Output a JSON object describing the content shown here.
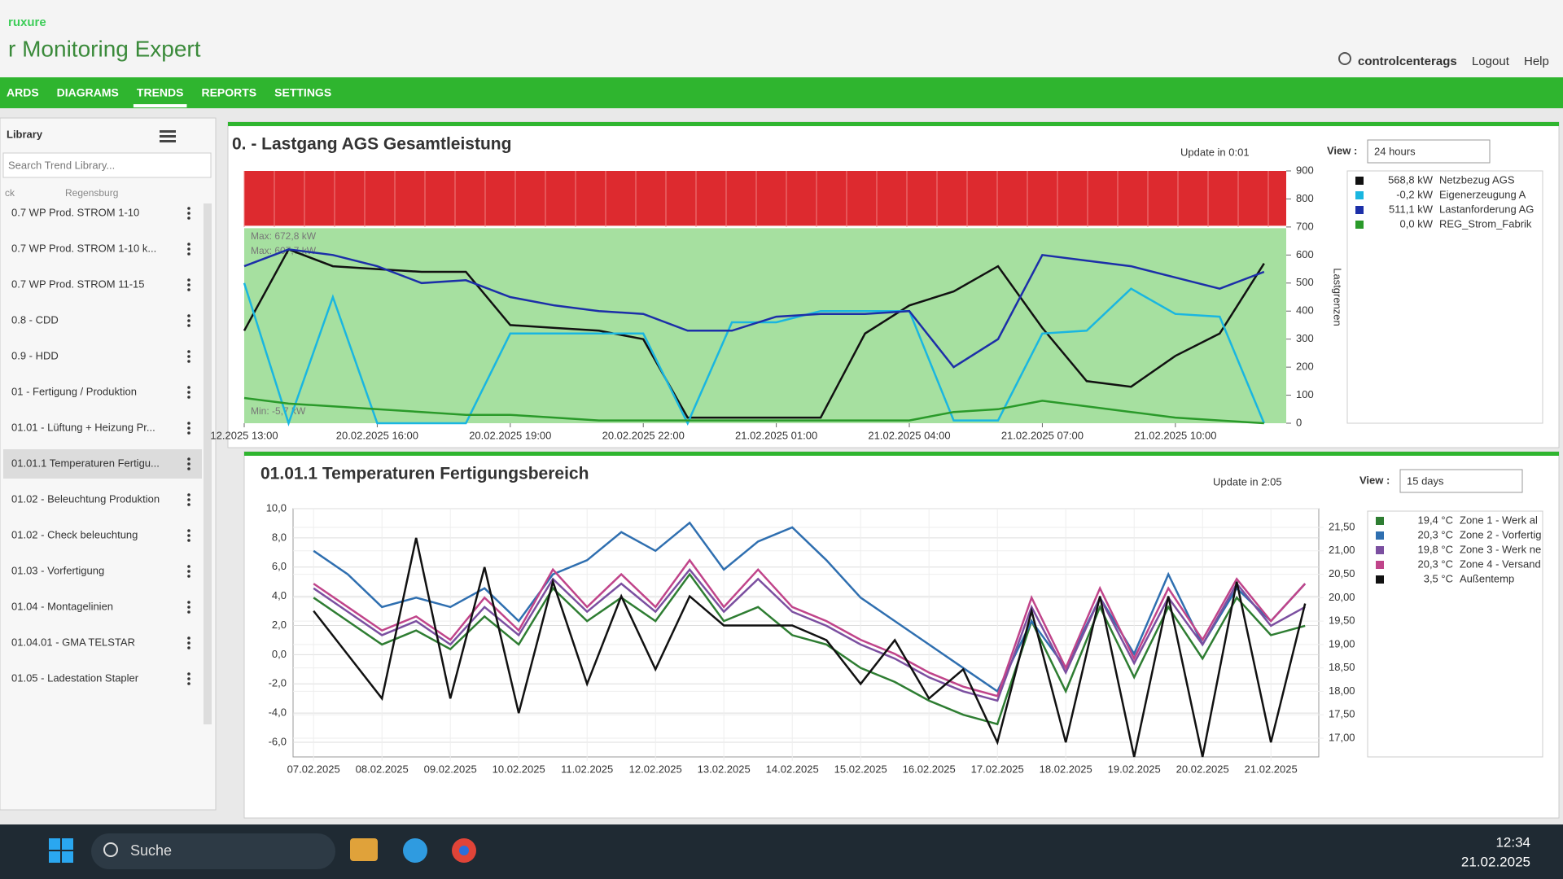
{
  "header": {
    "brand": "ruxure",
    "app": "r Monitoring Expert",
    "user": "controlcenterags",
    "logout": "Logout",
    "help": "Help"
  },
  "nav": [
    "ARDS",
    "DIAGRAMS",
    "TRENDS",
    "REPORTS",
    "SETTINGS"
  ],
  "library": {
    "title": "Library",
    "search": "Search Trend Library...",
    "columns": [
      "ck",
      "Regensburg"
    ],
    "items": [
      "0.7 WP Prod. STROM 1-10",
      "0.7 WP Prod. STROM 1-10 k...",
      "0.7 WP Prod. STROM 11-15",
      "0.8 - CDD",
      "0.9 - HDD",
      "01 - Fertigung / Produktion",
      "01.01 - Lüftung + Heizung Pr...",
      "01.01.1 Temperaturen Fertigu...",
      "01.02 - Beleuchtung Produktion",
      "01.02 - Check beleuchtung",
      "01.03 - Vorfertigung",
      "01.04 - Montagelinien",
      "01.04.01 - GMA TELSTAR",
      "01.05 - Ladestation Stapler"
    ]
  },
  "chart_data": [
    {
      "type": "line",
      "title": "0. - Lastgang AGS Gesamtleistung",
      "update": "Update in 0:01",
      "view_label": "View :",
      "view_value": "24 hours",
      "y2_label": "Lastgrenzen",
      "annotations": [
        "Max: 672,8 kW",
        "Max: 607,7 kW",
        "Min: -5,7 kW"
      ],
      "limit": 700,
      "x": [
        0,
        1,
        2,
        3,
        4,
        5,
        6,
        7,
        8,
        9,
        10,
        11,
        12,
        13,
        14,
        15,
        16,
        17,
        18,
        19,
        20,
        21,
        22,
        23
      ],
      "xlim": [
        0,
        23.5
      ],
      "xticks": [
        {
          "value": 0,
          "label": "12.2025 13:00"
        },
        {
          "value": 3,
          "label": "20.02.2025 16:00"
        },
        {
          "value": 6,
          "label": "20.02.2025 19:00"
        },
        {
          "value": 9,
          "label": "20.02.2025 22:00"
        },
        {
          "value": 12,
          "label": "21.02.2025 01:00"
        },
        {
          "value": 15,
          "label": "21.02.2025 04:00"
        },
        {
          "value": 18,
          "label": "21.02.2025 07:00"
        },
        {
          "value": 21,
          "label": "21.02.2025 10:00"
        }
      ],
      "y2lim": [
        0,
        900
      ],
      "y2ticks": [
        0,
        100,
        200,
        300,
        400,
        500,
        600,
        700,
        800,
        900
      ],
      "series": [
        {
          "name": "Netzbezug AGS",
          "current": "568,8 kW",
          "color": "#111111",
          "axis": "y2",
          "values": [
            330,
            620,
            560,
            550,
            540,
            540,
            350,
            340,
            330,
            300,
            20,
            20,
            20,
            20,
            320,
            420,
            470,
            560,
            340,
            150,
            130,
            240,
            320,
            570
          ]
        },
        {
          "name": "Eigenerzeugung A",
          "current": "-0,2 kW",
          "color": "#1ab6e0",
          "axis": "y2",
          "values": [
            500,
            0,
            450,
            0,
            0,
            0,
            320,
            320,
            320,
            320,
            0,
            360,
            360,
            400,
            400,
            400,
            10,
            10,
            320,
            330,
            480,
            390,
            380,
            0
          ]
        },
        {
          "name": "Lastanforderung AG",
          "current": "511,1 kW",
          "color": "#1c2fa8",
          "axis": "y2",
          "values": [
            560,
            620,
            600,
            560,
            500,
            510,
            450,
            420,
            400,
            390,
            330,
            330,
            380,
            390,
            390,
            400,
            200,
            300,
            600,
            580,
            560,
            520,
            480,
            540
          ]
        },
        {
          "name": "REG_Strom_Fabrik",
          "current": "0,0 kW",
          "color": "#2a9a2a",
          "axis": "y2",
          "values": [
            90,
            70,
            60,
            50,
            40,
            30,
            30,
            20,
            10,
            10,
            10,
            10,
            10,
            10,
            10,
            10,
            40,
            50,
            80,
            60,
            40,
            20,
            10,
            0
          ]
        }
      ]
    },
    {
      "type": "line",
      "title": "01.01.1 Temperaturen Fertigungsbereich",
      "update": "Update in 2:05",
      "view_label": "View :",
      "view_value": "15 days",
      "x": [
        0,
        0.5,
        1,
        1.5,
        2,
        2.5,
        3,
        3.5,
        4,
        4.5,
        5,
        5.5,
        6,
        6.5,
        7,
        7.5,
        8,
        8.5,
        9,
        9.5,
        10,
        10.5,
        11,
        11.5,
        12,
        12.5,
        13,
        13.5,
        14,
        14.5
      ],
      "xlim": [
        -0.3,
        14.7
      ],
      "xticks": [
        {
          "value": 0,
          "label": "07.02.2025"
        },
        {
          "value": 1,
          "label": "08.02.2025"
        },
        {
          "value": 2,
          "label": "09.02.2025"
        },
        {
          "value": 3,
          "label": "10.02.2025"
        },
        {
          "value": 4,
          "label": "11.02.2025"
        },
        {
          "value": 5,
          "label": "12.02.2025"
        },
        {
          "value": 6,
          "label": "13.02.2025"
        },
        {
          "value": 7,
          "label": "14.02.2025"
        },
        {
          "value": 8,
          "label": "15.02.2025"
        },
        {
          "value": 9,
          "label": "16.02.2025"
        },
        {
          "value": 10,
          "label": "17.02.2025"
        },
        {
          "value": 11,
          "label": "18.02.2025"
        },
        {
          "value": 12,
          "label": "19.02.2025"
        },
        {
          "value": 13,
          "label": "20.02.2025"
        },
        {
          "value": 14,
          "label": "21.02.2025"
        }
      ],
      "ylim": [
        -7,
        10
      ],
      "yticks": [
        {
          "value": -6,
          "label": "-6,0"
        },
        {
          "value": -4,
          "label": "-4,0"
        },
        {
          "value": -2,
          "label": "-2,0"
        },
        {
          "value": 0,
          "label": "0,0"
        },
        {
          "value": 2,
          "label": "2,0"
        },
        {
          "value": 4,
          "label": "4,0"
        },
        {
          "value": 6,
          "label": "6,0"
        },
        {
          "value": 8,
          "label": "8,0"
        },
        {
          "value": 10,
          "label": "10,0"
        }
      ],
      "y2lim": [
        16.6,
        21.9
      ],
      "y2ticks": [
        {
          "value": 17,
          "label": "17,00"
        },
        {
          "value": 17.5,
          "label": "17,50"
        },
        {
          "value": 18,
          "label": "18,00"
        },
        {
          "value": 18.5,
          "label": "18,50"
        },
        {
          "value": 19,
          "label": "19,00"
        },
        {
          "value": 19.5,
          "label": "19,50"
        },
        {
          "value": 20,
          "label": "20,00"
        },
        {
          "value": 20.5,
          "label": "20,50"
        },
        {
          "value": 21,
          "label": "21,00"
        },
        {
          "value": 21.5,
          "label": "21,50"
        }
      ],
      "grid": true,
      "series": [
        {
          "name": "Zone 1 - Werk al",
          "current": "19,4 °C",
          "color": "#2e7d32",
          "axis": "y2",
          "values": [
            20,
            19.5,
            19,
            19.3,
            18.9,
            19.6,
            19,
            20.2,
            19.5,
            20,
            19.5,
            20.5,
            19.5,
            19.8,
            19.2,
            19,
            18.5,
            18.2,
            17.8,
            17.5,
            17.3,
            19.5,
            18,
            19.8,
            18.3,
            19.8,
            18.7,
            20,
            19.2,
            19.4
          ]
        },
        {
          "name": "Zone 2 - Vorfertig",
          "current": "20,3 °C",
          "color": "#2f6fb0",
          "axis": "y2",
          "values": [
            21,
            20.5,
            19.8,
            20,
            19.8,
            20.2,
            19.5,
            20.5,
            20.8,
            21.4,
            21,
            21.6,
            20.6,
            21.2,
            21.5,
            20.8,
            20,
            19.5,
            19,
            18.5,
            18,
            19.5,
            18.5,
            20,
            18.8,
            20.5,
            19,
            20.2,
            19.5,
            20.3
          ]
        },
        {
          "name": "Zone 3 - Werk ne",
          "current": "19,8 °C",
          "color": "#7b4fa0",
          "axis": "y2",
          "values": [
            20.2,
            19.7,
            19.2,
            19.5,
            19,
            19.8,
            19.2,
            20.4,
            19.7,
            20.3,
            19.7,
            20.6,
            19.7,
            20.4,
            19.7,
            19.4,
            19,
            18.7,
            18.3,
            18,
            17.8,
            19.8,
            18.4,
            20,
            18.6,
            20,
            19,
            20.3,
            19.4,
            19.8
          ]
        },
        {
          "name": "Zone 4 - Versand",
          "current": "20,3 °C",
          "color": "#c0448a",
          "axis": "y2",
          "values": [
            20.3,
            19.8,
            19.3,
            19.6,
            19.1,
            20,
            19.3,
            20.6,
            19.8,
            20.5,
            19.8,
            20.8,
            19.8,
            20.6,
            19.8,
            19.5,
            19.1,
            18.8,
            18.4,
            18.1,
            17.9,
            20,
            18.5,
            20.2,
            18.7,
            20.2,
            19.1,
            20.4,
            19.5,
            20.3
          ]
        },
        {
          "name": "Außentemp",
          "current": "3,5 °C",
          "color": "#111111",
          "values": [
            3,
            0,
            -3,
            8,
            -3,
            6,
            -4,
            5,
            -2,
            4,
            -1,
            4,
            2,
            2,
            2,
            1,
            -2,
            1,
            -3,
            -1,
            -6,
            3,
            -6,
            4,
            -7,
            4,
            -7,
            5,
            -6,
            3.5
          ]
        }
      ]
    }
  ],
  "taskbar": {
    "search": "Suche",
    "time": "12:34",
    "date": "21.02.2025"
  }
}
